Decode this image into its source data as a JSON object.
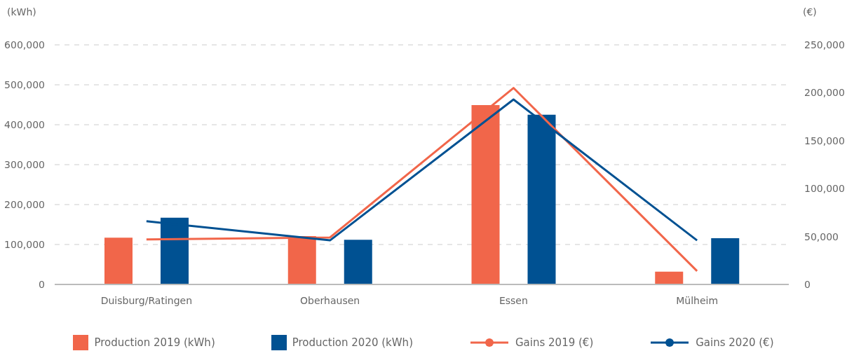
{
  "chart_data": {
    "type": "bar",
    "ylabel": "(kWh)",
    "y2label": "(€)",
    "categories": [
      "Duisburg/Ratingen",
      "Oberhausen",
      "Essen",
      "Mülheim"
    ],
    "series": [
      {
        "name": "Production 2019 (kWh)",
        "color": "#f1664a",
        "values": [
          117000,
          121000,
          449000,
          32000
        ]
      },
      {
        "name": "Production 2020 (kWh)",
        "color": "#005192",
        "values": [
          167000,
          112000,
          425000,
          116000
        ]
      },
      {
        "name": "Gains 2019 (€)",
        "type": "line",
        "axis": "y2",
        "color": "#f1664a",
        "values": [
          47000,
          49000,
          205000,
          14000
        ]
      },
      {
        "name": "Gains 2020 (€)",
        "type": "line",
        "axis": "y2",
        "color": "#005192",
        "values": [
          66000,
          46000,
          193000,
          46000
        ]
      }
    ],
    "ylim": [
      0,
      600000
    ],
    "yticks": [
      {
        "value": 0,
        "label": "0"
      },
      {
        "value": 100000,
        "label": "100,000"
      },
      {
        "value": 200000,
        "label": "200,000"
      },
      {
        "value": 300000,
        "label": "300,000"
      },
      {
        "value": 400000,
        "label": "400,000"
      },
      {
        "value": 500000,
        "label": "500,000"
      },
      {
        "value": 600000,
        "label": "600,000"
      }
    ],
    "y2lim": [
      0,
      250000
    ],
    "y2ticks": [
      {
        "value": 0,
        "label": "0"
      },
      {
        "value": 50000,
        "label": "50,000"
      },
      {
        "value": 100000,
        "label": "100,000"
      },
      {
        "value": 150000,
        "label": "150,000"
      },
      {
        "value": 200000,
        "label": "200,000"
      },
      {
        "value": 250000,
        "label": "250,000"
      }
    ],
    "grid": "y",
    "legend": "bottom"
  }
}
